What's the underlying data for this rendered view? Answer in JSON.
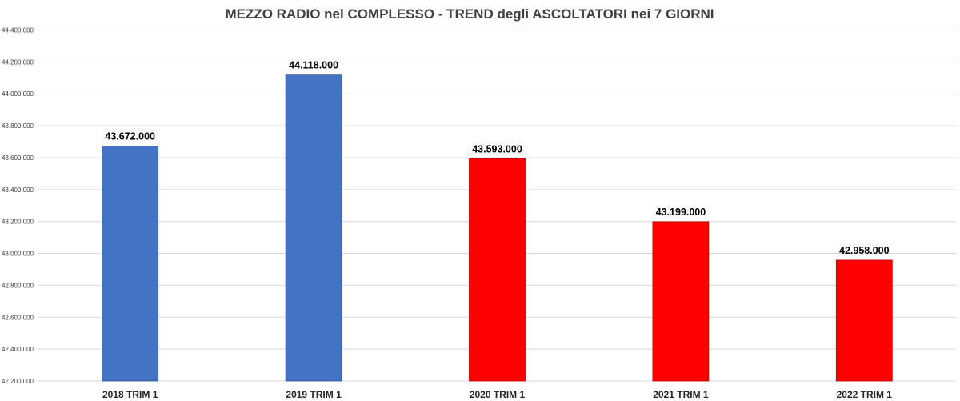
{
  "chart_data": {
    "type": "bar",
    "title": "MEZZO RADIO nel COMPLESSO - TREND degli ASCOLTATORI nei 7 GIORNI",
    "xlabel": "",
    "ylabel": "",
    "categories": [
      "2018 TRIM 1",
      "2019 TRIM 1",
      "2020 TRIM 1",
      "2021 TRIM 1",
      "2022 TRIM 1"
    ],
    "values": [
      43672000,
      44118000,
      43593000,
      43199000,
      42958000
    ],
    "value_labels": [
      "43.672.000",
      "44.118.000",
      "43.593.000",
      "43.199.000",
      "42.958.000"
    ],
    "bar_colors": [
      "#4472c4",
      "#4472c4",
      "#ff0000",
      "#ff0000",
      "#ff0000"
    ],
    "ylim": [
      42200000,
      44400000
    ],
    "yticks": [
      42200000,
      42400000,
      42600000,
      42800000,
      43000000,
      43200000,
      43400000,
      43600000,
      43800000,
      44000000,
      44200000,
      44400000
    ],
    "ytick_labels": [
      "42.200.000",
      "42.400.000",
      "42.600.000",
      "42.800.000",
      "43.000.000",
      "43.200.000",
      "43.400.000",
      "43.600.000",
      "43.800.000",
      "44.000.000",
      "44.200.000",
      "44.400.000"
    ],
    "grid": true,
    "legend": "none"
  }
}
